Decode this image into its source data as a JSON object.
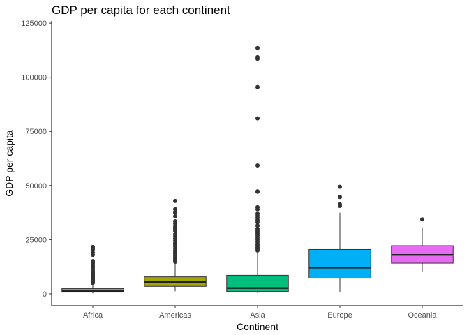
{
  "chart_data": {
    "type": "boxplot",
    "title": "GDP per capita for each continent",
    "xlabel": "Continent",
    "ylabel": "GDP per capita",
    "ylim": [
      -5500,
      126000
    ],
    "yticks": [
      0,
      25000,
      50000,
      75000,
      100000,
      125000
    ],
    "grid": false,
    "legend": "none",
    "categories": [
      "Africa",
      "Americas",
      "Asia",
      "Europe",
      "Oceania"
    ],
    "boxes": [
      {
        "name": "Africa",
        "color": "#F8766D",
        "whisker_low": 241,
        "q1": 761,
        "median": 1192,
        "q3": 2377,
        "whisker_high": 4800,
        "outliers": [
          5000,
          5400,
          5900,
          6200,
          6600,
          7000,
          7400,
          7700,
          8000,
          8400,
          8700,
          9000,
          9500,
          10000,
          10500,
          11000,
          12000,
          12600,
          13200,
          14000,
          14700,
          15100,
          18000,
          19000,
          20500,
          21600
        ]
      },
      {
        "name": "Americas",
        "color": "#A3A500",
        "whisker_low": 1202,
        "q1": 3428,
        "median": 5466,
        "q3": 7831,
        "whisker_high": 14400,
        "outliers": [
          14800,
          15500,
          16200,
          17000,
          17700,
          18500,
          19300,
          20000,
          21000,
          22000,
          22800,
          23500,
          24500,
          25500,
          26500,
          27500,
          29000,
          30000,
          31000,
          32500,
          33500,
          35800,
          37500,
          39100,
          42900
        ]
      },
      {
        "name": "Asia",
        "color": "#00BF7D",
        "whisker_low": 331,
        "q1": 1057,
        "median": 2646,
        "q3": 8549,
        "whisker_high": 19800,
        "outliers": [
          20000,
          20800,
          21500,
          22300,
          23000,
          24000,
          25000,
          26000,
          27000,
          28000,
          29000,
          30000,
          31500,
          33000,
          34000,
          35000,
          36000,
          37000,
          39000,
          40000,
          47100,
          47300,
          59300,
          81000,
          95500,
          108500,
          109300,
          113500
        ]
      },
      {
        "name": "Europe",
        "color": "#00B0F6",
        "whisker_low": 973,
        "q1": 7213,
        "median": 12082,
        "q3": 20461,
        "whisker_high": 37500,
        "outliers": [
          40600,
          41300,
          44700,
          49400
        ]
      },
      {
        "name": "Oceania",
        "color": "#E76BF3",
        "whisker_low": 10040,
        "q1": 14142,
        "median": 17983,
        "q3": 22214,
        "whisker_high": 30700,
        "outliers": [
          34400
        ]
      }
    ]
  }
}
